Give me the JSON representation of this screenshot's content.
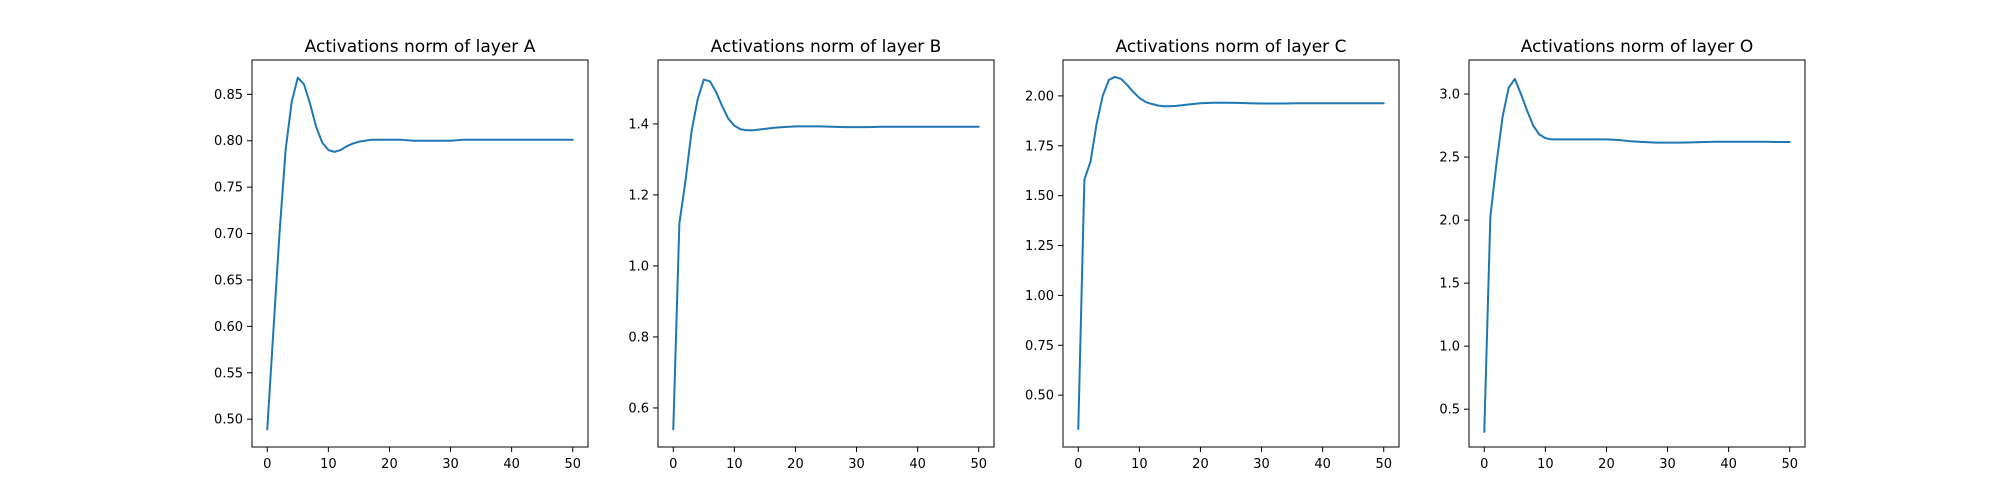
{
  "figure": {
    "line_color": "#1f77b4"
  },
  "chart_data": [
    {
      "type": "line",
      "title": "Activations norm of layer A",
      "xlabel": "",
      "ylabel": "",
      "xlim": [
        -2.5,
        52.5
      ],
      "ylim": [
        0.47,
        0.887
      ],
      "grid": false,
      "xticks": [
        0,
        10,
        20,
        30,
        40,
        50
      ],
      "xtick_labels": [
        "0",
        "10",
        "20",
        "30",
        "40",
        "50"
      ],
      "yticks": [
        0.5,
        0.55,
        0.6,
        0.65,
        0.7,
        0.75,
        0.8,
        0.85
      ],
      "ytick_labels": [
        "0.50",
        "0.55",
        "0.60",
        "0.65",
        "0.70",
        "0.75",
        "0.80",
        "0.85"
      ],
      "series": [
        {
          "x": [
            0,
            1,
            2,
            3,
            4,
            5,
            6,
            7,
            8,
            9,
            10,
            11,
            12,
            13,
            14,
            15,
            16,
            17,
            18,
            19,
            20,
            22,
            24,
            26,
            28,
            30,
            32,
            34,
            36,
            38,
            40,
            42,
            44,
            46,
            48,
            50
          ],
          "values": [
            0.489,
            0.595,
            0.7,
            0.79,
            0.842,
            0.868,
            0.861,
            0.84,
            0.815,
            0.798,
            0.79,
            0.788,
            0.79,
            0.794,
            0.797,
            0.799,
            0.8,
            0.801,
            0.801,
            0.801,
            0.801,
            0.801,
            0.8,
            0.8,
            0.8,
            0.8,
            0.801,
            0.801,
            0.801,
            0.801,
            0.801,
            0.801,
            0.801,
            0.801,
            0.801,
            0.801
          ]
        }
      ]
    },
    {
      "type": "line",
      "title": "Activations norm of layer B",
      "xlabel": "",
      "ylabel": "",
      "xlim": [
        -2.5,
        52.5
      ],
      "ylim": [
        0.49,
        1.58
      ],
      "grid": false,
      "xticks": [
        0,
        10,
        20,
        30,
        40,
        50
      ],
      "xtick_labels": [
        "0",
        "10",
        "20",
        "30",
        "40",
        "50"
      ],
      "yticks": [
        0.6,
        0.8,
        1.0,
        1.2,
        1.4
      ],
      "ytick_labels": [
        "0.6",
        "0.8",
        "1.0",
        "1.2",
        "1.4"
      ],
      "series": [
        {
          "x": [
            0,
            1,
            2,
            3,
            4,
            5,
            6,
            7,
            8,
            9,
            10,
            11,
            12,
            13,
            14,
            15,
            16,
            17,
            18,
            19,
            20,
            22,
            24,
            26,
            28,
            30,
            32,
            34,
            36,
            38,
            40,
            42,
            44,
            46,
            48,
            50
          ],
          "values": [
            0.54,
            1.12,
            1.24,
            1.38,
            1.47,
            1.525,
            1.52,
            1.49,
            1.45,
            1.415,
            1.395,
            1.385,
            1.382,
            1.382,
            1.384,
            1.386,
            1.388,
            1.39,
            1.391,
            1.392,
            1.393,
            1.393,
            1.393,
            1.392,
            1.391,
            1.391,
            1.391,
            1.392,
            1.392,
            1.392,
            1.392,
            1.392,
            1.392,
            1.392,
            1.392,
            1.392
          ]
        }
      ]
    },
    {
      "type": "line",
      "title": "Activations norm of layer C",
      "xlabel": "",
      "ylabel": "",
      "xlim": [
        -2.5,
        52.5
      ],
      "ylim": [
        0.24,
        2.18
      ],
      "grid": false,
      "xticks": [
        0,
        10,
        20,
        30,
        40,
        50
      ],
      "xtick_labels": [
        "0",
        "10",
        "20",
        "30",
        "40",
        "50"
      ],
      "yticks": [
        0.5,
        0.75,
        1.0,
        1.25,
        1.5,
        1.75,
        2.0
      ],
      "ytick_labels": [
        "0.50",
        "0.75",
        "1.00",
        "1.25",
        "1.50",
        "1.75",
        "2.00"
      ],
      "series": [
        {
          "x": [
            0,
            1,
            2,
            3,
            4,
            5,
            6,
            7,
            8,
            9,
            10,
            11,
            12,
            13,
            14,
            15,
            16,
            17,
            18,
            19,
            20,
            22,
            24,
            26,
            28,
            30,
            32,
            34,
            36,
            38,
            40,
            42,
            44,
            46,
            48,
            50
          ],
          "values": [
            0.33,
            1.58,
            1.67,
            1.86,
            2.0,
            2.08,
            2.095,
            2.085,
            2.055,
            2.02,
            1.99,
            1.97,
            1.96,
            1.952,
            1.948,
            1.948,
            1.95,
            1.953,
            1.957,
            1.96,
            1.963,
            1.966,
            1.966,
            1.965,
            1.963,
            1.962,
            1.962,
            1.962,
            1.963,
            1.963,
            1.963,
            1.963,
            1.963,
            1.963,
            1.963,
            1.963
          ]
        }
      ]
    },
    {
      "type": "line",
      "title": "Activations norm of layer O",
      "xlabel": "",
      "ylabel": "",
      "xlim": [
        -2.5,
        52.5
      ],
      "ylim": [
        0.2,
        3.27
      ],
      "grid": false,
      "xticks": [
        0,
        10,
        20,
        30,
        40,
        50
      ],
      "xtick_labels": [
        "0",
        "10",
        "20",
        "30",
        "40",
        "50"
      ],
      "yticks": [
        0.5,
        1.0,
        1.5,
        2.0,
        2.5,
        3.0
      ],
      "ytick_labels": [
        "0.5",
        "1.0",
        "1.5",
        "2.0",
        "2.5",
        "3.0"
      ],
      "series": [
        {
          "x": [
            0,
            1,
            2,
            3,
            4,
            5,
            6,
            7,
            8,
            9,
            10,
            11,
            12,
            13,
            14,
            15,
            16,
            17,
            18,
            19,
            20,
            22,
            24,
            26,
            28,
            30,
            32,
            34,
            36,
            38,
            40,
            42,
            44,
            46,
            48,
            50
          ],
          "values": [
            0.32,
            2.03,
            2.45,
            2.82,
            3.05,
            3.12,
            3.0,
            2.87,
            2.75,
            2.68,
            2.65,
            2.64,
            2.64,
            2.64,
            2.64,
            2.64,
            2.64,
            2.64,
            2.64,
            2.64,
            2.64,
            2.635,
            2.625,
            2.62,
            2.615,
            2.615,
            2.615,
            2.617,
            2.62,
            2.622,
            2.622,
            2.622,
            2.622,
            2.621,
            2.62,
            2.62
          ]
        }
      ]
    }
  ]
}
